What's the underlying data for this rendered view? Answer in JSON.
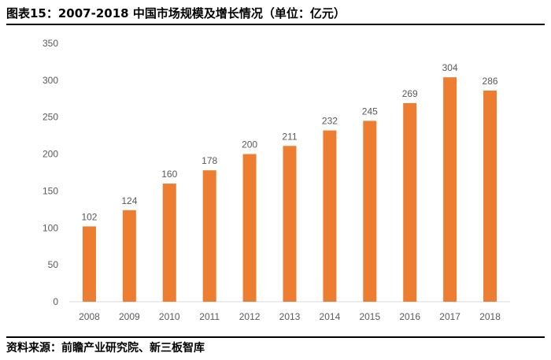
{
  "chart_data": {
    "type": "bar",
    "title": "图表15：2007-2018 中国市场规模及增长情况（单位：亿元）",
    "categories": [
      "2008",
      "2009",
      "2010",
      "2011",
      "2012",
      "2013",
      "2014",
      "2015",
      "2016",
      "2017",
      "2018"
    ],
    "values": [
      102,
      124,
      160,
      178,
      200,
      211,
      232,
      245,
      269,
      304,
      286
    ],
    "ylim": [
      0,
      350
    ],
    "yticks": [
      0,
      50,
      100,
      150,
      200,
      250,
      300,
      350
    ],
    "grid": false,
    "bar_color": "#ED7D31",
    "data_labels": true
  },
  "source": "资料来源：前瞻产业研究院、新三板智库"
}
